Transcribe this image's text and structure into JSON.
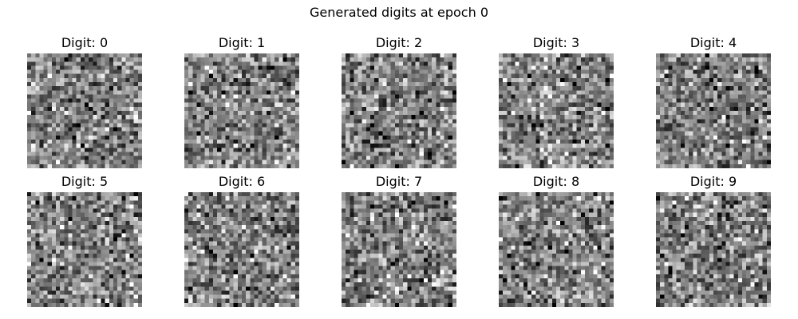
{
  "figure": {
    "title": "Generated digits at epoch 0"
  },
  "panels": [
    {
      "title": "Digit: 0"
    },
    {
      "title": "Digit: 1"
    },
    {
      "title": "Digit: 2"
    },
    {
      "title": "Digit: 3"
    },
    {
      "title": "Digit: 4"
    },
    {
      "title": "Digit: 5"
    },
    {
      "title": "Digit: 6"
    },
    {
      "title": "Digit: 7"
    },
    {
      "title": "Digit: 8"
    },
    {
      "title": "Digit: 9"
    }
  ],
  "image_grid": {
    "rows": 28,
    "cols": 28,
    "colormap": "gray"
  }
}
